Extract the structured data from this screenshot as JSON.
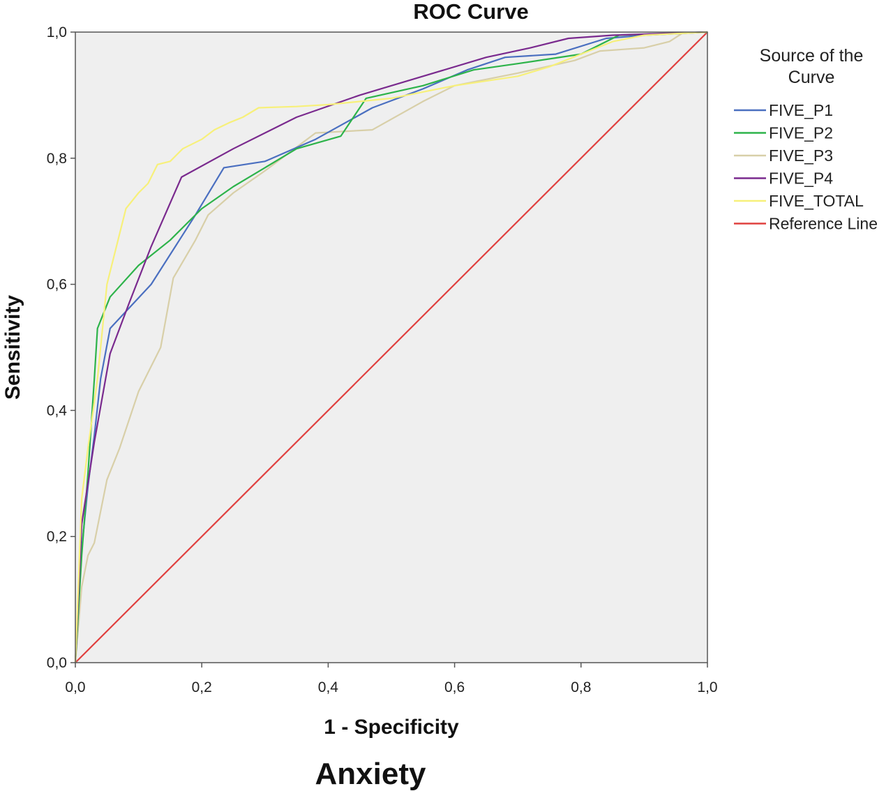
{
  "chart_data": {
    "type": "line",
    "title": "ROC Curve",
    "xlabel": "1 - Specificity",
    "ylabel": "Sensitivity",
    "subtitle": "Anxiety",
    "xlim": [
      0,
      1
    ],
    "ylim": [
      0,
      1
    ],
    "x_ticks": [
      "0,0",
      "0,2",
      "0,4",
      "0,6",
      "0,8",
      "1,0"
    ],
    "y_ticks": [
      "0,0",
      "0,2",
      "0,4",
      "0,6",
      "0,8",
      "1,0"
    ],
    "grid": false,
    "plot_background": "#efefef",
    "legend": {
      "title": "Source of the Curve",
      "title_lines": [
        "Source of the",
        "Curve"
      ],
      "placement": "right"
    },
    "series": [
      {
        "name": "FIVE_P1",
        "color": "#4a6fc0",
        "x": [
          0,
          0.01,
          0.02,
          0.03,
          0.04,
          0.055,
          0.12,
          0.19,
          0.235,
          0.3,
          0.38,
          0.47,
          0.55,
          0.62,
          0.68,
          0.76,
          0.84,
          0.9,
          1.0
        ],
        "y": [
          0,
          0.18,
          0.28,
          0.36,
          0.45,
          0.53,
          0.6,
          0.71,
          0.785,
          0.795,
          0.83,
          0.88,
          0.91,
          0.94,
          0.96,
          0.965,
          0.99,
          0.995,
          1.0
        ]
      },
      {
        "name": "FIVE_P2",
        "color": "#2db34a",
        "x": [
          0,
          0.01,
          0.02,
          0.03,
          0.035,
          0.055,
          0.1,
          0.15,
          0.2,
          0.25,
          0.3,
          0.35,
          0.42,
          0.46,
          0.55,
          0.63,
          0.7,
          0.8,
          0.86,
          1.0
        ],
        "y": [
          0,
          0.17,
          0.3,
          0.45,
          0.53,
          0.58,
          0.63,
          0.67,
          0.72,
          0.755,
          0.785,
          0.815,
          0.835,
          0.895,
          0.915,
          0.94,
          0.95,
          0.965,
          0.995,
          1.0
        ]
      },
      {
        "name": "FIVE_P3",
        "color": "#d8cfa8",
        "x": [
          0,
          0.01,
          0.02,
          0.03,
          0.05,
          0.07,
          0.1,
          0.135,
          0.155,
          0.19,
          0.21,
          0.25,
          0.3,
          0.38,
          0.47,
          0.55,
          0.6,
          0.7,
          0.79,
          0.83,
          0.9,
          0.94,
          0.96,
          1.0
        ],
        "y": [
          0,
          0.12,
          0.17,
          0.19,
          0.29,
          0.34,
          0.43,
          0.5,
          0.61,
          0.67,
          0.71,
          0.745,
          0.78,
          0.84,
          0.845,
          0.89,
          0.915,
          0.935,
          0.955,
          0.97,
          0.975,
          0.985,
          0.998,
          1.0
        ]
      },
      {
        "name": "FIVE_P4",
        "color": "#7a2a8e",
        "x": [
          0,
          0.01,
          0.03,
          0.055,
          0.085,
          0.12,
          0.168,
          0.25,
          0.35,
          0.45,
          0.55,
          0.65,
          0.72,
          0.78,
          0.85,
          1.0
        ],
        "y": [
          0,
          0.22,
          0.35,
          0.49,
          0.57,
          0.66,
          0.77,
          0.815,
          0.865,
          0.9,
          0.93,
          0.96,
          0.975,
          0.99,
          0.995,
          1.0
        ]
      },
      {
        "name": "FIVE_TOTAL",
        "color": "#f7f07a",
        "x": [
          0,
          0.01,
          0.02,
          0.035,
          0.05,
          0.07,
          0.08,
          0.1,
          0.115,
          0.13,
          0.15,
          0.17,
          0.2,
          0.22,
          0.245,
          0.265,
          0.29,
          0.35,
          0.4,
          0.5,
          0.6,
          0.7,
          0.75,
          0.8,
          0.85,
          0.9,
          1.0
        ],
        "y": [
          0,
          0.26,
          0.34,
          0.45,
          0.6,
          0.68,
          0.72,
          0.745,
          0.76,
          0.79,
          0.795,
          0.815,
          0.83,
          0.845,
          0.857,
          0.865,
          0.88,
          0.882,
          0.885,
          0.895,
          0.915,
          0.93,
          0.945,
          0.965,
          0.985,
          0.995,
          1.0
        ]
      },
      {
        "name": "Reference Line",
        "color": "#e0403f",
        "x": [
          0,
          1
        ],
        "y": [
          0,
          1
        ]
      }
    ]
  }
}
